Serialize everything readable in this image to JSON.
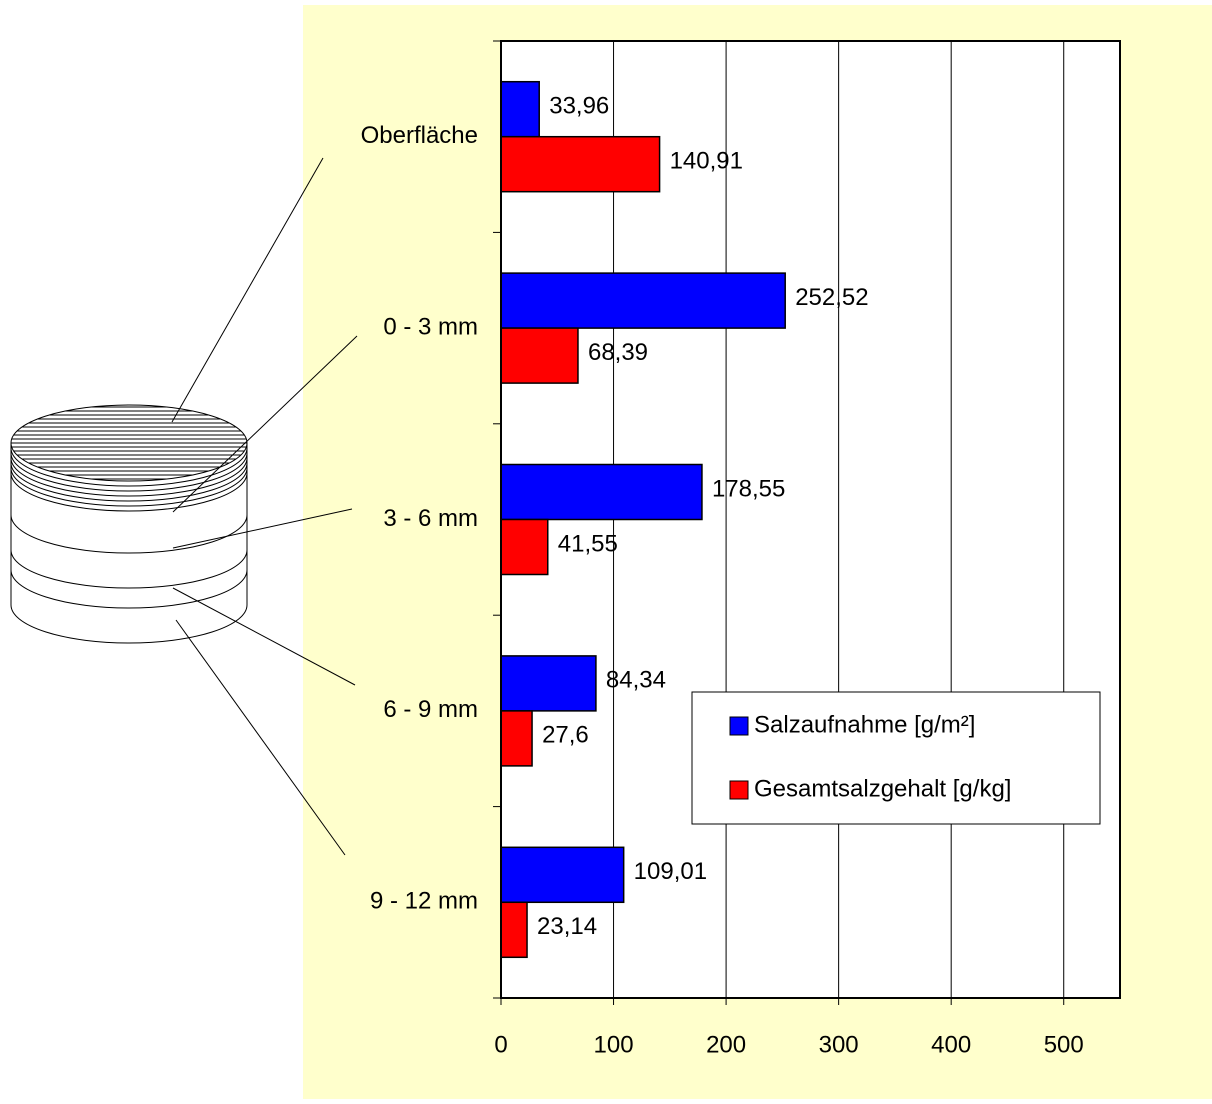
{
  "chart_data": {
    "type": "hbar",
    "categories": [
      "Oberfläche",
      "0 - 3 mm",
      "3 - 6 mm",
      "6 - 9 mm",
      "9 - 12 mm"
    ],
    "series": [
      {
        "name": "Salzaufnahme [g/m²]",
        "color": "#0000ff",
        "values": [
          33.96,
          252.52,
          178.55,
          84.34,
          109.01
        ],
        "value_labels": [
          "33,96",
          "252,52",
          "178,55",
          "84,34",
          "109,01"
        ]
      },
      {
        "name": "Gesamtsalzgehalt [g/kg]",
        "color": "#ff0000",
        "values": [
          140.91,
          68.39,
          41.55,
          27.6,
          23.14
        ],
        "value_labels": [
          "140,91",
          "68,39",
          "41,55",
          "27,6",
          "23,14"
        ]
      }
    ],
    "xlim": [
      0,
      550
    ],
    "xticks": [
      0,
      100,
      200,
      300,
      400,
      500
    ],
    "grid": true,
    "legend": "lower right"
  }
}
